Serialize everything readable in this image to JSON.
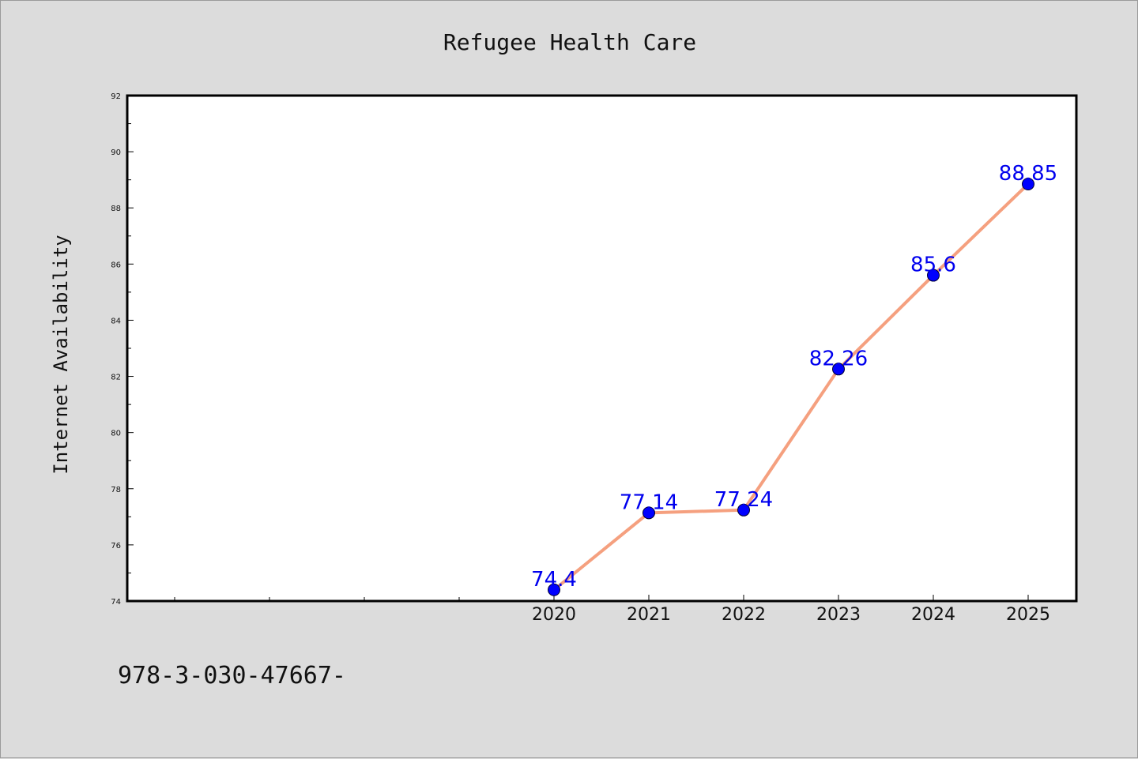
{
  "chart_data": {
    "type": "line",
    "title": "Refugee Health Care",
    "xlabel": "",
    "ylabel": "Internet Availability",
    "x": [
      "2020",
      "2021",
      "2022",
      "2023",
      "2024",
      "2025"
    ],
    "x_slots_before": 4,
    "series": [
      {
        "values": [
          74.4,
          77.14,
          77.24,
          82.26,
          85.6,
          88.85
        ],
        "labels": [
          "74.4",
          "77.14",
          "77.24",
          "82.26",
          "85.6",
          "88.85"
        ],
        "line_color": "#f5a07f",
        "marker_color": "#0000ff"
      }
    ],
    "ylim": [
      74,
      92
    ],
    "yticks": [
      74,
      76,
      78,
      80,
      82,
      84,
      86,
      88,
      90,
      92
    ],
    "grid": false,
    "legend": "none"
  },
  "footer_text": "978-3-030-47667-"
}
